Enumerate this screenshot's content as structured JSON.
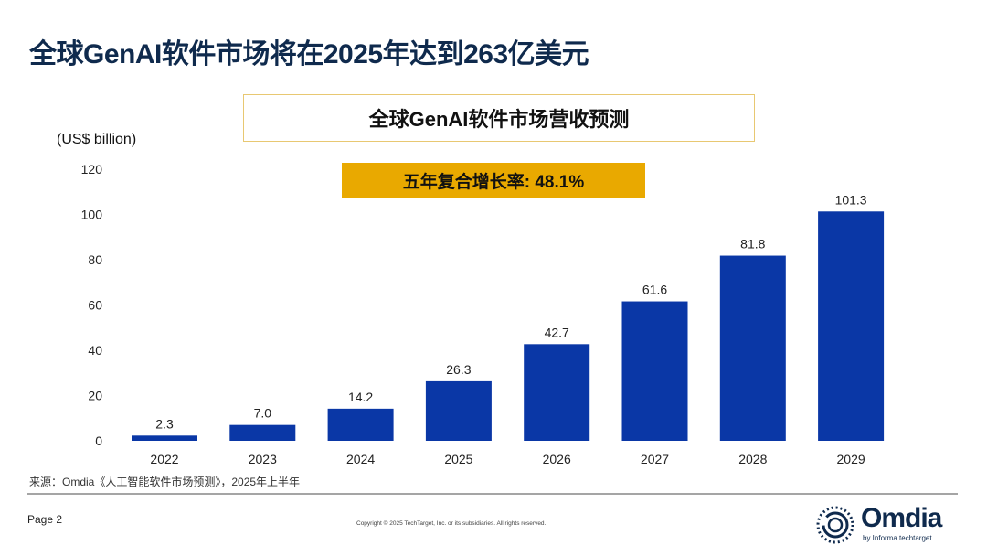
{
  "title": "全球GenAI软件市场将在2025年达到263亿美元",
  "chart_subtitle": "全球GenAI软件市场营收预测",
  "cagr_label": "五年复合增长率: 48.1%",
  "chart_data": {
    "type": "bar",
    "title": "全球GenAI软件市场营收预测",
    "ylabel": "(US$ billion)",
    "xlabel": "",
    "categories": [
      "2022",
      "2023",
      "2024",
      "2025",
      "2026",
      "2027",
      "2028",
      "2029"
    ],
    "values": [
      2.3,
      7.0,
      14.2,
      26.3,
      42.7,
      61.6,
      81.8,
      101.3
    ],
    "value_labels": [
      "2.3",
      "7.0",
      "14.2",
      "26.3",
      "42.7",
      "61.6",
      "81.8",
      "101.3"
    ],
    "ylim": [
      0,
      120
    ],
    "yticks": [
      "0",
      "20",
      "40",
      "60",
      "80",
      "100",
      "120"
    ],
    "grid": false,
    "bar_color": "#0a37a6"
  },
  "source": "来源：Omdia《人工智能软件市场预测》，2025年上半年",
  "footer": {
    "page": "Page 2",
    "copyright": "Copyright © 2025 TechTarget, Inc. or its subsidiaries. All rights reserved.",
    "logo_text": "Omdia",
    "logo_sub": "by Informa techtarget"
  }
}
